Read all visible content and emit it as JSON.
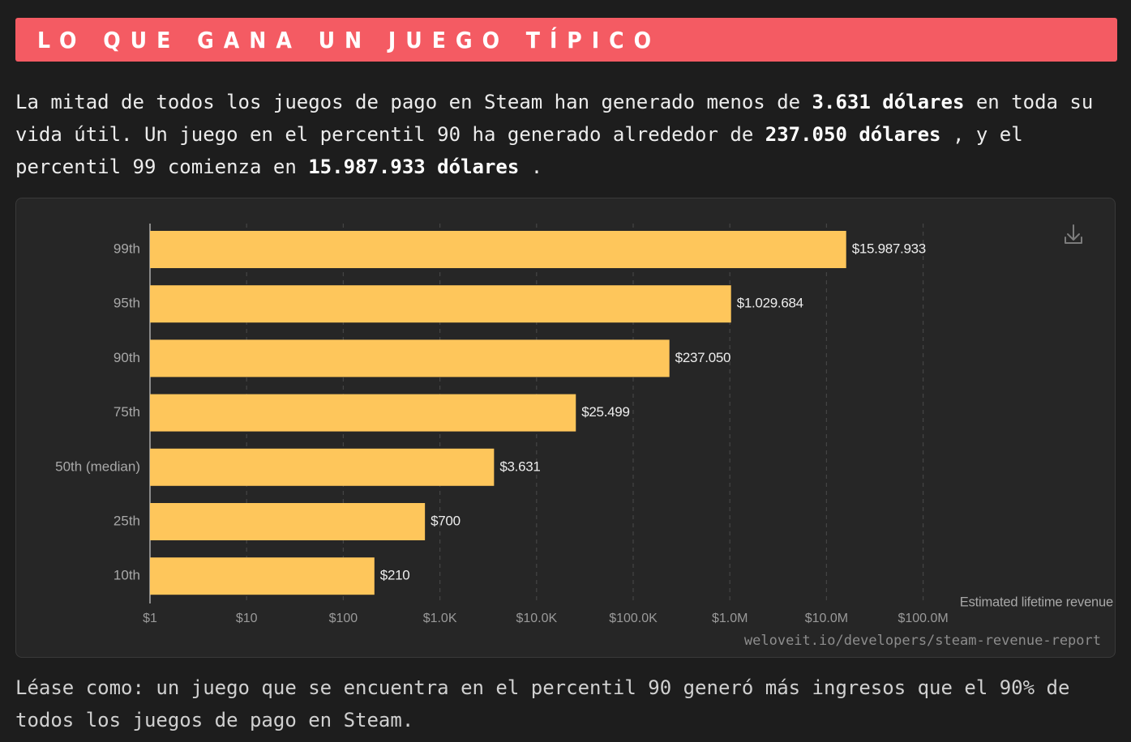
{
  "header": {
    "title": "LO QUE GANA UN JUEGO TÍPICO",
    "accent_color": "#f45b63"
  },
  "intro": {
    "p1": "La mitad de todos los juegos de pago en Steam han generado menos de ",
    "b1": "3.631 dólares",
    "p2": " en toda su vida útil. Un juego en el percentil 90 ha generado alrededor de ",
    "b2": "237.050 dólares",
    "p3": " , y el percentil 99 comienza en ",
    "b3": "15.987.933 dólares",
    "p4": " ."
  },
  "chart_data": {
    "type": "bar",
    "orientation": "horizontal",
    "x_scale": "log",
    "xlim": [
      1,
      100000000
    ],
    "categories": [
      "99th",
      "95th",
      "90th",
      "75th",
      "50th (median)",
      "25th",
      "10th"
    ],
    "values": [
      15987933,
      1029684,
      237050,
      25499,
      3631,
      700,
      210
    ],
    "value_labels": [
      "$15.987.933",
      "$1.029.684",
      "$237.050",
      "$25.499",
      "$3.631",
      "$700",
      "$210"
    ],
    "x_ticks": [
      1,
      10,
      100,
      1000,
      10000,
      100000,
      1000000,
      10000000,
      100000000
    ],
    "x_tick_labels": [
      "$1",
      "$10",
      "$100",
      "$1.0K",
      "$10.0K",
      "$100.0K",
      "$1.0M",
      "$10.0M",
      "$100.0M"
    ],
    "xlabel": "Estimated lifetime revenue",
    "source": "weloveit.io/developers/steam-revenue-report",
    "grid": true,
    "bar_color": "#fec65b",
    "icon": "download-icon"
  },
  "outro": {
    "text": "Léase como: un juego que se encuentra en el percentil 90 generó más ingresos que el 90% de todos los juegos de pago en Steam."
  }
}
